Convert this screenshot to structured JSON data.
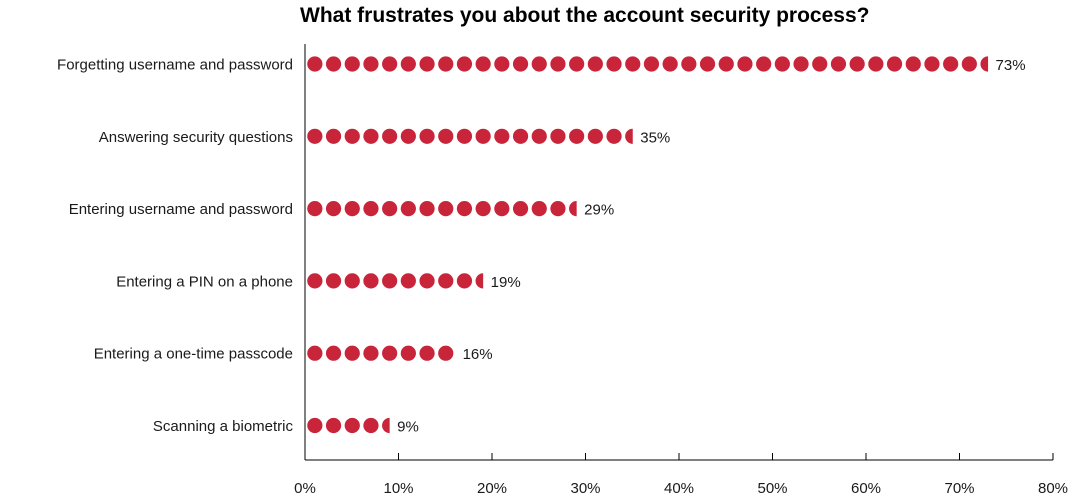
{
  "colors": {
    "dot": "#c8253b",
    "axis": "#000000",
    "text": "#1a1a1a"
  },
  "chart_data": {
    "type": "bar",
    "style": "dot-plot",
    "orientation": "horizontal",
    "title": "What frustrates you about the account security process?",
    "xlabel": "",
    "ylabel": "",
    "categories": [
      "Forgetting  username and password",
      "Answering security questions",
      "Entering  username and password",
      "Entering a PIN on a phone",
      "Entering a one-time passcode",
      "Scanning a biometric"
    ],
    "values": [
      73,
      35,
      29,
      19,
      16,
      9
    ],
    "data_labels": [
      "73%",
      "35%",
      "29%",
      "19%",
      "16%",
      "9%"
    ],
    "xlim": [
      0,
      80
    ],
    "x_ticks": [
      0,
      10,
      20,
      30,
      40,
      50,
      60,
      70,
      80
    ],
    "x_tick_labels": [
      "0%",
      "10%",
      "20%",
      "30%",
      "40%",
      "50%",
      "60%",
      "70%",
      "80%"
    ],
    "dot_unit": 2,
    "grid": false,
    "legend": "none"
  }
}
